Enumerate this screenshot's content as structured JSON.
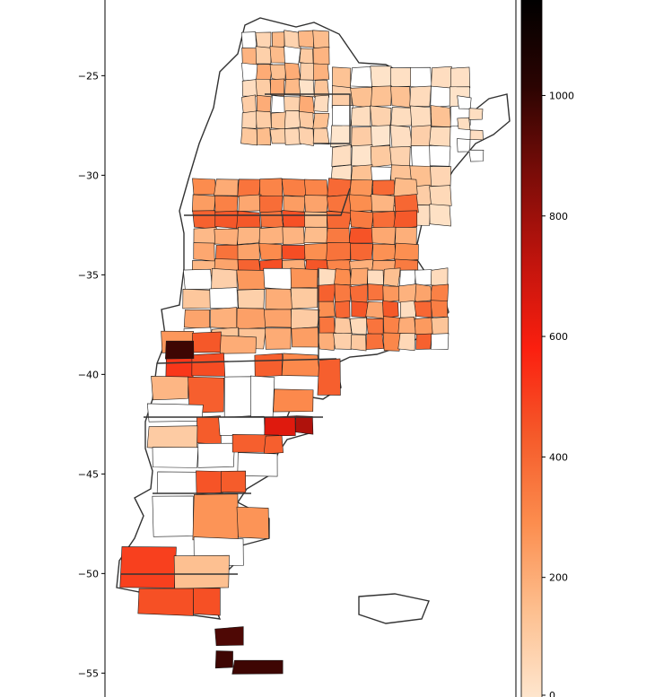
{
  "map": {
    "title": "",
    "y_axis": {
      "ticks": [
        {
          "value": -25,
          "label": "−25"
        },
        {
          "value": -30,
          "label": "−30"
        },
        {
          "value": -35,
          "label": "−35"
        },
        {
          "value": -40,
          "label": "−40"
        },
        {
          "value": -45,
          "label": "−45"
        },
        {
          "value": -50,
          "label": "−50"
        },
        {
          "value": -55,
          "label": "−55"
        }
      ],
      "range": [
        -56.2,
        -21.2
      ]
    },
    "colorbar": {
      "colormap": "Oranges-Reds-Black",
      "range": [
        0,
        1160
      ],
      "ticks": [
        {
          "value": 0,
          "label": "0"
        },
        {
          "value": 200,
          "label": "200"
        },
        {
          "value": 400,
          "label": "400"
        },
        {
          "value": 600,
          "label": "600"
        },
        {
          "value": 800,
          "label": "800"
        },
        {
          "value": 1000,
          "label": "1000"
        }
      ],
      "stops": [
        "#fee6ce",
        "#fdbf8f",
        "#fc8d4e",
        "#f55a2a",
        "#fb1f0f",
        "#c0140d",
        "#7a0c08",
        "#2b0402",
        "#000000"
      ]
    },
    "no_data_color": "#ffffff"
  }
}
